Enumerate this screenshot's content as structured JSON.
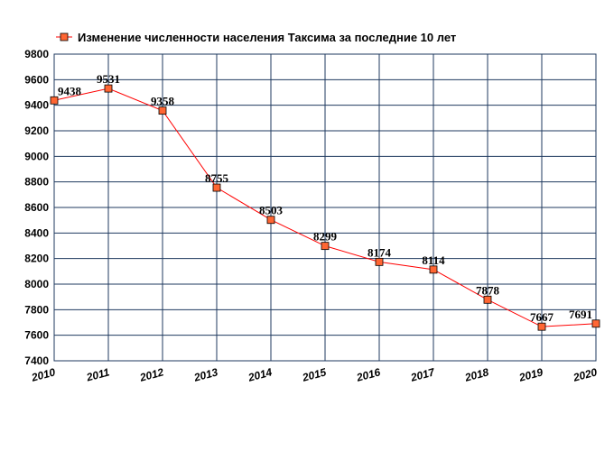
{
  "chart_data": {
    "type": "line",
    "legend": {
      "label": "Изменение численности населения Таксима за последние 10 лет",
      "position": "top-left"
    },
    "x": [
      "2010",
      "2011",
      "2012",
      "2013",
      "2014",
      "2015",
      "2016",
      "2017",
      "2018",
      "2019",
      "2020"
    ],
    "series": [
      {
        "name": "Изменение численности населения Таксима за последние 10 лет",
        "values": [
          9438,
          9531,
          9358,
          8755,
          8503,
          8299,
          8174,
          8114,
          7878,
          7667,
          7691
        ],
        "color": "#ff0000",
        "marker_fill": "#ff6633"
      }
    ],
    "yticks": [
      "7400",
      "7600",
      "7800",
      "8000",
      "8200",
      "8400",
      "8600",
      "8800",
      "9000",
      "9200",
      "9400",
      "9600",
      "9800"
    ],
    "ylim": [
      7400,
      9800
    ],
    "grid": true,
    "grid_color": "#1f3a5f"
  }
}
